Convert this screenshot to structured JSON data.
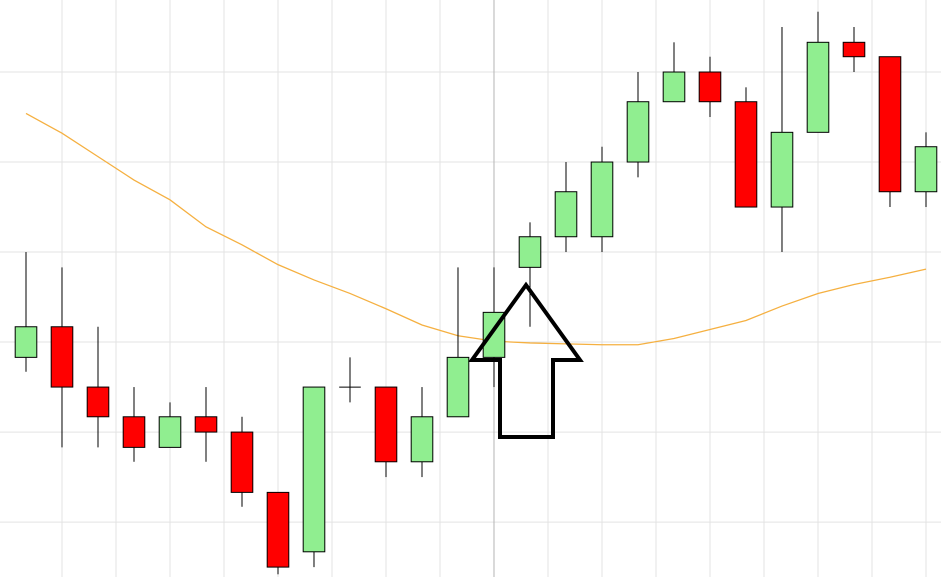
{
  "chart_data": {
    "type": "candlestick",
    "x": [
      0,
      1,
      2,
      3,
      4,
      5,
      6,
      7,
      8,
      9,
      10,
      11,
      12,
      13,
      14,
      15,
      16,
      17,
      18,
      19,
      20,
      21,
      22,
      23,
      24,
      25
    ],
    "open": [
      2.83,
      3.17,
      2.5,
      2.17,
      1.83,
      2.17,
      2.0,
      1.33,
      0.67,
      2.5,
      2.5,
      1.67,
      2.17,
      2.83,
      3.83,
      4.17,
      4.17,
      5.0,
      5.67,
      6.0,
      5.67,
      4.5,
      5.33,
      6.33,
      6.17,
      4.67
    ],
    "high": [
      4.0,
      3.83,
      3.17,
      2.5,
      2.33,
      2.5,
      2.17,
      1.33,
      2.5,
      2.83,
      2.5,
      2.5,
      3.83,
      3.83,
      4.33,
      5.0,
      5.17,
      6.0,
      6.33,
      6.17,
      5.83,
      6.5,
      6.67,
      6.5,
      6.17,
      5.33
    ],
    "low": [
      2.67,
      1.83,
      1.83,
      1.67,
      1.83,
      1.67,
      1.17,
      0.42,
      0.5,
      2.33,
      1.5,
      1.5,
      2.17,
      2.5,
      3.17,
      4.0,
      4.0,
      4.83,
      5.67,
      5.5,
      4.5,
      4.0,
      5.33,
      6.0,
      4.5,
      4.5
    ],
    "close": [
      3.17,
      2.5,
      2.17,
      1.83,
      2.17,
      2.0,
      1.33,
      0.5,
      2.5,
      2.5,
      1.67,
      2.17,
      2.83,
      3.33,
      4.17,
      4.67,
      5.0,
      5.67,
      6.0,
      5.67,
      4.5,
      5.33,
      6.33,
      6.17,
      4.67,
      5.17
    ],
    "up_color": "#90ee90",
    "down_color": "#ff0000",
    "moving_average": {
      "color": "#f5b041",
      "values": [
        5.54,
        5.32,
        5.06,
        4.8,
        4.58,
        4.28,
        4.08,
        3.86,
        3.69,
        3.54,
        3.37,
        3.19,
        3.07,
        3.01,
        2.99,
        2.98,
        2.97,
        2.97,
        3.04,
        3.14,
        3.24,
        3.4,
        3.54,
        3.64,
        3.72,
        3.81
      ]
    },
    "xlim": [
      -0.722,
      25.417
    ],
    "ylim": [
      0.39,
      6.8
    ],
    "xticks": [
      1,
      2.5,
      4,
      5.5,
      7,
      8.5,
      10,
      11.5,
      13,
      14.5,
      16,
      17.5,
      19,
      20.5,
      22,
      23.5,
      25
    ],
    "yticks": [
      1,
      2,
      3,
      4,
      5,
      6
    ],
    "grid": true
  }
}
